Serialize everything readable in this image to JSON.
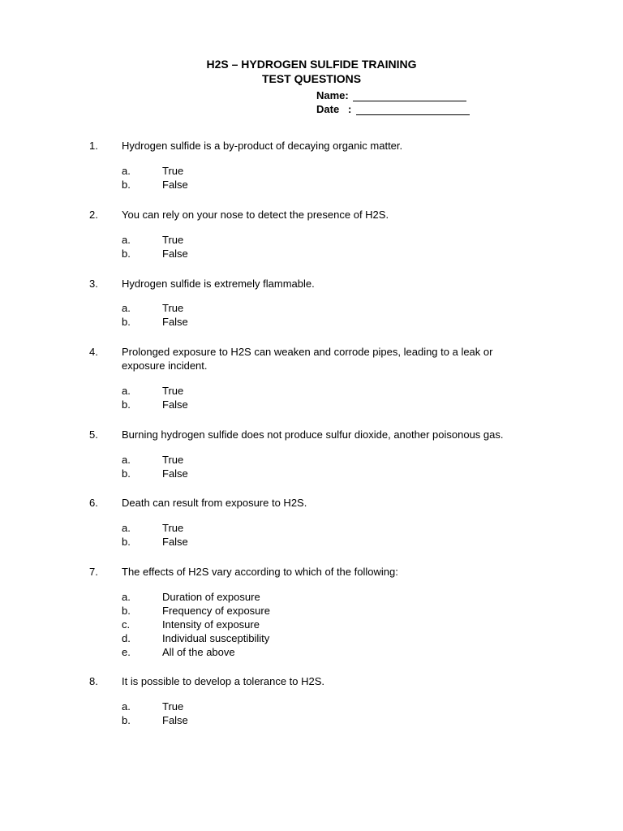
{
  "title_line1": "H2S – HYDROGEN SULFIDE TRAINING",
  "title_line2": "TEST QUESTIONS",
  "name_label": "Name: ",
  "date_label": "Date   : ",
  "questions": [
    {
      "num": "1.",
      "text": "Hydrogen sulfide is a by-product of decaying organic matter.",
      "options": [
        {
          "letter": "a.",
          "text": "True"
        },
        {
          "letter": "b.",
          "text": "False"
        }
      ]
    },
    {
      "num": "2.",
      "text": "You can rely on your nose to detect the presence of H2S.",
      "options": [
        {
          "letter": "a.",
          "text": "True"
        },
        {
          "letter": "b.",
          "text": "False"
        }
      ]
    },
    {
      "num": "3.",
      "text": "Hydrogen sulfide is extremely flammable.",
      "options": [
        {
          "letter": "a.",
          "text": "True"
        },
        {
          "letter": "b.",
          "text": "False"
        }
      ]
    },
    {
      "num": "4.",
      "text": "Prolonged exposure to H2S can weaken and corrode pipes, leading to a leak or exposure incident.",
      "options": [
        {
          "letter": "a.",
          "text": "True"
        },
        {
          "letter": "b.",
          "text": "False"
        }
      ]
    },
    {
      "num": "5.",
      "text": "Burning hydrogen sulfide does not produce sulfur dioxide, another poisonous gas.",
      "options": [
        {
          "letter": "a.",
          "text": "True"
        },
        {
          "letter": "b.",
          "text": "False"
        }
      ]
    },
    {
      "num": "6.",
      "text": "Death can result from exposure to H2S.",
      "options": [
        {
          "letter": "a.",
          "text": "True"
        },
        {
          "letter": "b.",
          "text": "False"
        }
      ]
    },
    {
      "num": "7.",
      "text": "The effects of H2S vary according to which of the following:",
      "options": [
        {
          "letter": "a.",
          "text": "Duration of exposure"
        },
        {
          "letter": "b.",
          "text": "Frequency of exposure"
        },
        {
          "letter": "c.",
          "text": "Intensity of exposure"
        },
        {
          "letter": "d.",
          "text": "Individual susceptibility"
        },
        {
          "letter": "e.",
          "text": "All of the above"
        }
      ]
    },
    {
      "num": "8.",
      "text": "It is possible to develop a tolerance to H2S.",
      "options": [
        {
          "letter": "a.",
          "text": "True"
        },
        {
          "letter": "b.",
          "text": "False"
        }
      ]
    }
  ]
}
